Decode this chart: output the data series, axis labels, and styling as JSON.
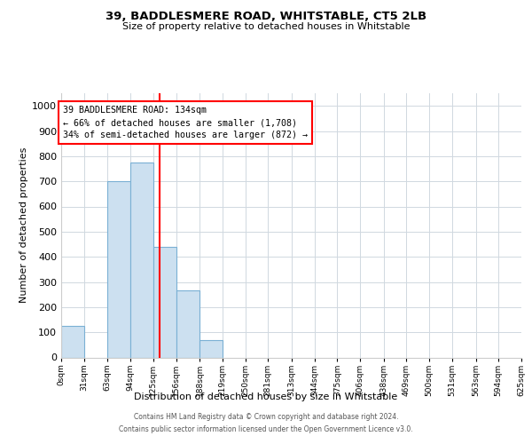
{
  "title1": "39, BADDLESMERE ROAD, WHITSTABLE, CT5 2LB",
  "title2": "Size of property relative to detached houses in Whitstable",
  "xlabel": "Distribution of detached houses by size in Whitstable",
  "ylabel": "Number of detached properties",
  "bar_color": "#cce0f0",
  "bar_edge_color": "#7ab0d4",
  "grid_color": "#d0d8e0",
  "annotation_line_color": "red",
  "annotation_box_color": "red",
  "annotation_text": "39 BADDLESMERE ROAD: 134sqm\n← 66% of detached houses are smaller (1,708)\n34% of semi-detached houses are larger (872) →",
  "property_sqm": 134,
  "footer1": "Contains HM Land Registry data © Crown copyright and database right 2024.",
  "footer2": "Contains public sector information licensed under the Open Government Licence v3.0.",
  "bins": [
    0,
    31,
    63,
    94,
    125,
    156,
    188,
    219,
    250,
    281,
    313,
    344,
    375,
    406,
    438,
    469,
    500,
    531,
    563,
    594,
    625
  ],
  "counts": [
    125,
    0,
    700,
    775,
    440,
    265,
    70,
    0,
    0,
    0,
    0,
    0,
    0,
    0,
    0,
    0,
    0,
    0,
    0,
    0
  ],
  "ylim": [
    0,
    1050
  ],
  "yticks": [
    0,
    100,
    200,
    300,
    400,
    500,
    600,
    700,
    800,
    900,
    1000
  ]
}
